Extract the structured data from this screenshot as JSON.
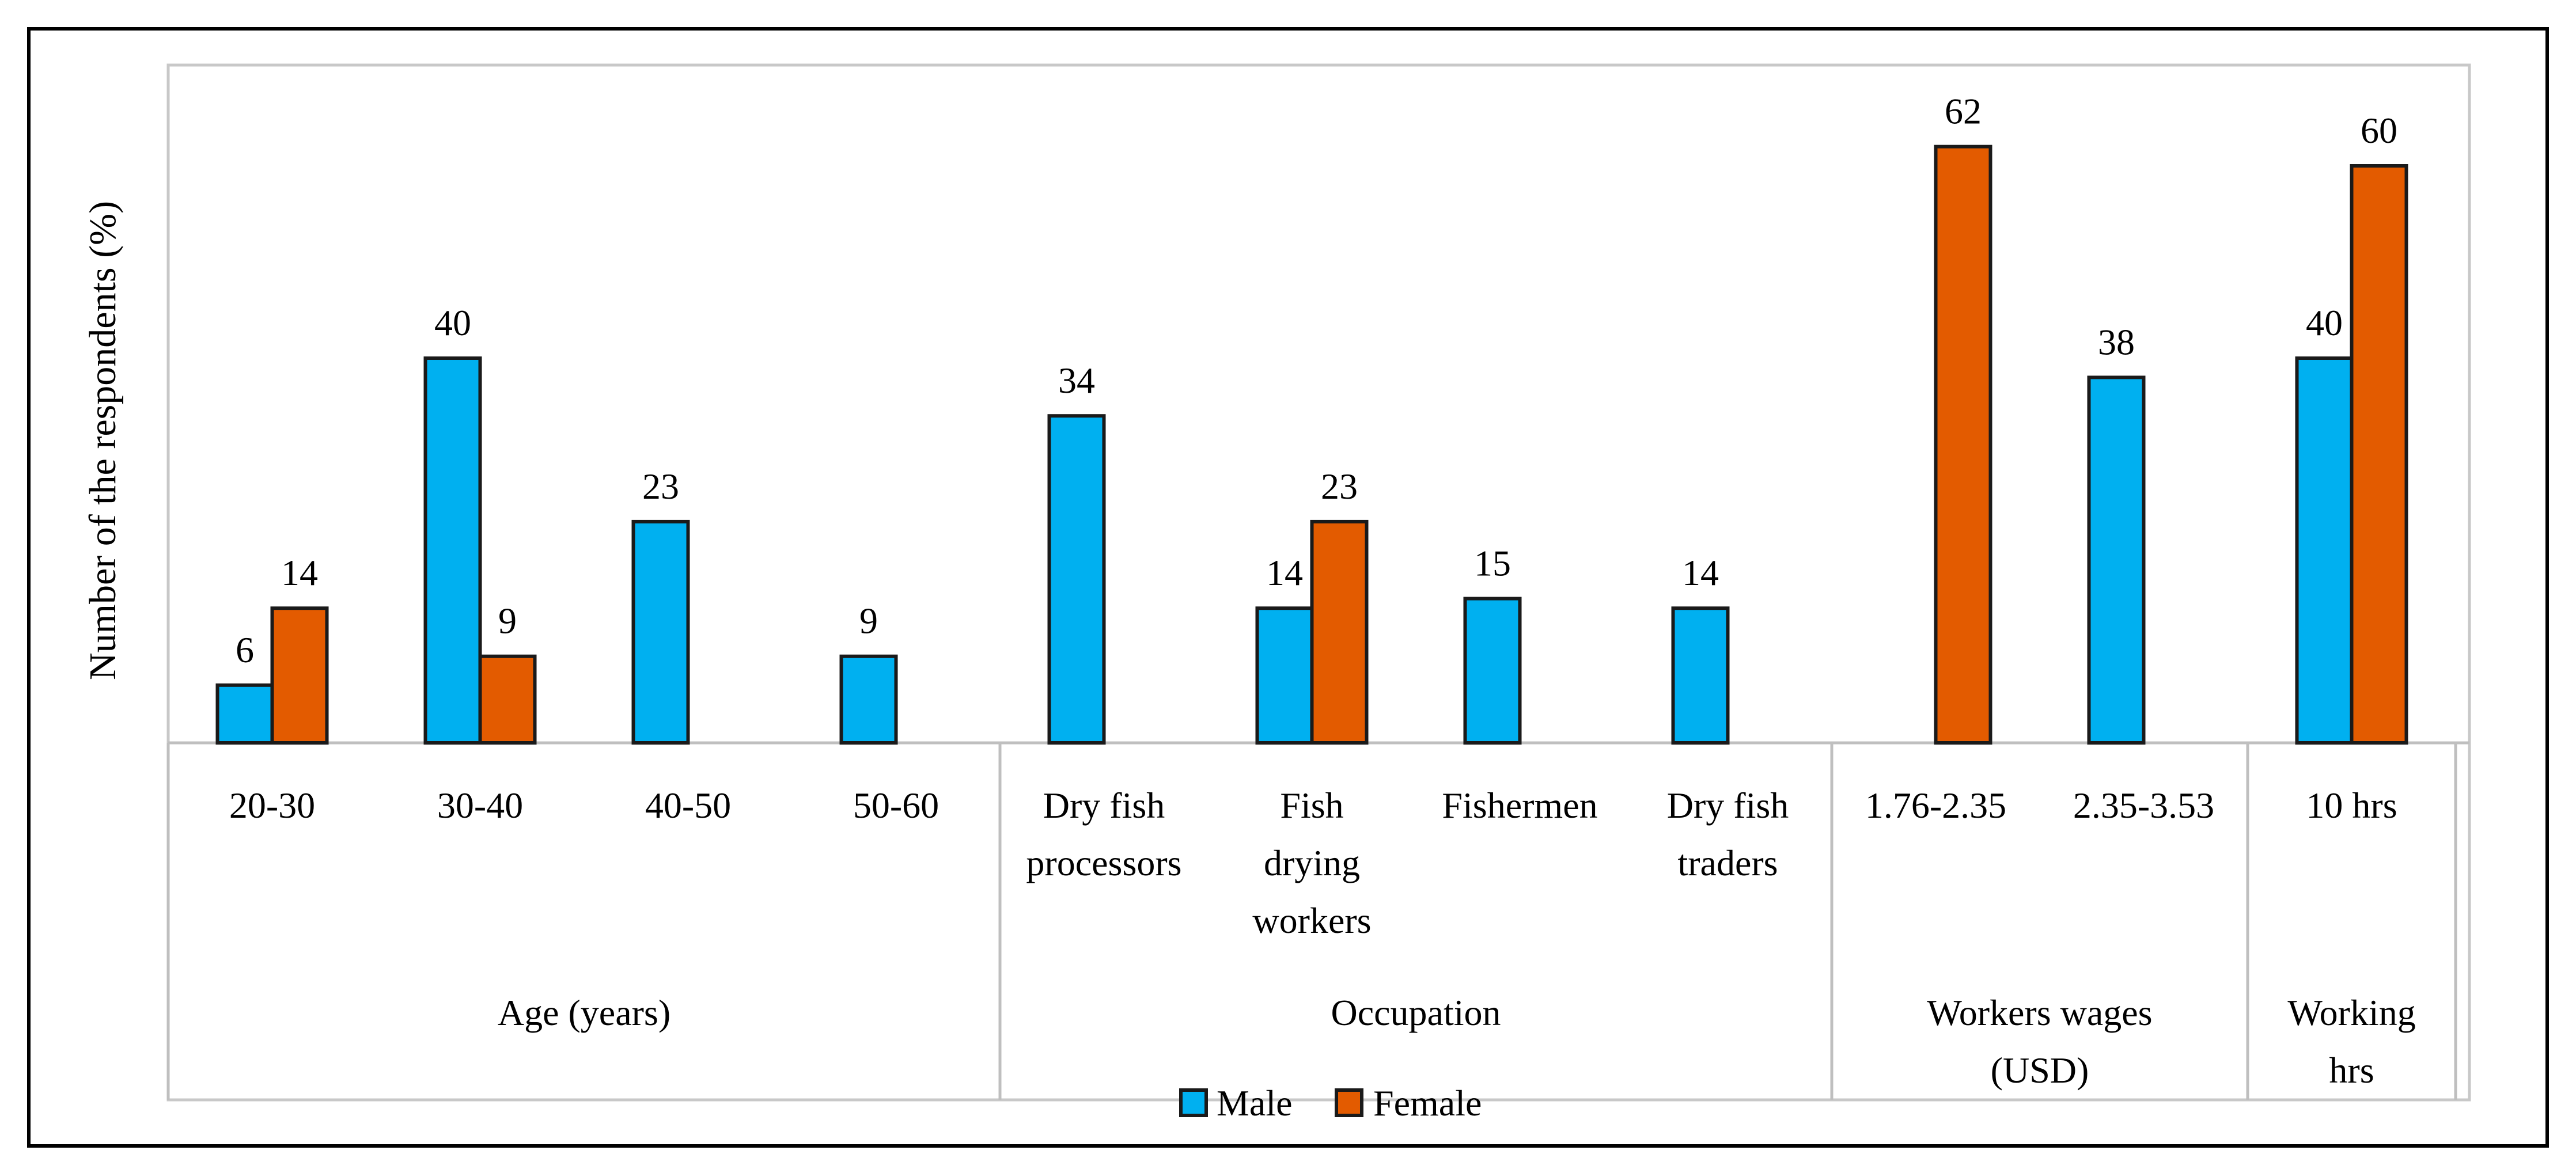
{
  "chart_data": {
    "type": "bar",
    "ylabel": "Number of the respondents (%)",
    "ylim": [
      0,
      70
    ],
    "series_names": [
      "Male",
      "Female"
    ],
    "colors": {
      "Male": "#00b0f0",
      "Female": "#e35b00"
    },
    "groups": [
      {
        "name_lines": [
          "Age (years)"
        ],
        "categories": [
          {
            "label_lines": [
              "20-30"
            ],
            "male": 6,
            "female": 14
          },
          {
            "label_lines": [
              "30-40"
            ],
            "male": 40,
            "female": 9
          },
          {
            "label_lines": [
              "40-50"
            ],
            "male": 23,
            "female": null
          },
          {
            "label_lines": [
              "50-60"
            ],
            "male": 9,
            "female": null
          }
        ]
      },
      {
        "name_lines": [
          "Occupation"
        ],
        "categories": [
          {
            "label_lines": [
              "Dry fish",
              "processors"
            ],
            "male": 34,
            "female": null
          },
          {
            "label_lines": [
              "Fish",
              "drying",
              "workers"
            ],
            "male": 14,
            "female": 23
          },
          {
            "label_lines": [
              "Fishermen"
            ],
            "male": 15,
            "female": null
          },
          {
            "label_lines": [
              "Dry fish",
              "traders"
            ],
            "male": 14,
            "female": null
          }
        ]
      },
      {
        "name_lines": [
          "Workers  wages",
          "(USD)"
        ],
        "categories": [
          {
            "label_lines": [
              "1.76-2.35"
            ],
            "male": null,
            "female": 62
          },
          {
            "label_lines": [
              "2.35-3.53"
            ],
            "male": 38,
            "female": null
          }
        ]
      },
      {
        "name_lines": [
          "Working",
          "hrs"
        ],
        "categories": [
          {
            "label_lines": [
              "10 hrs"
            ],
            "male": 40,
            "female": 60
          }
        ]
      }
    ],
    "legend": {
      "position": "bottom-center",
      "entries": [
        "Male",
        "Female"
      ]
    }
  }
}
